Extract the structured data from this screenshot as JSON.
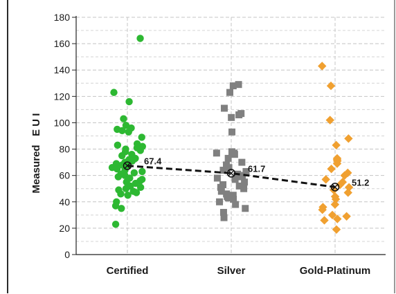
{
  "chart_data": {
    "type": "scatter",
    "title": "",
    "xlabel": "",
    "ylabel": "Measured   E U I",
    "ylim": [
      0,
      180
    ],
    "yticks": [
      0,
      20,
      40,
      60,
      80,
      100,
      120,
      140,
      160,
      180
    ],
    "grid": true,
    "categories": [
      "Certified",
      "Silver",
      "Gold-Platinum"
    ],
    "series": [
      {
        "category": "Certified",
        "marker": "circle",
        "color": "#2db832",
        "values": [
          164,
          123,
          116,
          103,
          98,
          96,
          95,
          94,
          93,
          89,
          84,
          83,
          82,
          81,
          80,
          79,
          78,
          76,
          75,
          73,
          72,
          71,
          70,
          69,
          68,
          67,
          66,
          65,
          64,
          63,
          62,
          61,
          60,
          59,
          58,
          57,
          56,
          55,
          54,
          52,
          51,
          50,
          49,
          48,
          47,
          46,
          45,
          40,
          37,
          35,
          23
        ]
      },
      {
        "category": "Silver",
        "marker": "square",
        "color": "#808080",
        "values": [
          129,
          128,
          123,
          111,
          107,
          106,
          104,
          93,
          78,
          77,
          77,
          76,
          73,
          70,
          68,
          66,
          64,
          63,
          61,
          60,
          59,
          58,
          57,
          55,
          53,
          52,
          51,
          50,
          48,
          46,
          45,
          44,
          43,
          42,
          40,
          38,
          35,
          32,
          28
        ]
      },
      {
        "category": "Gold-Platinum",
        "marker": "diamond",
        "color": "#f0a030",
        "values": [
          143,
          128,
          102,
          88,
          83,
          73,
          72,
          71,
          69,
          65,
          62,
          60,
          57,
          55,
          53,
          51,
          49,
          47,
          44,
          42,
          38,
          36,
          34,
          30,
          29,
          27,
          26,
          19
        ]
      }
    ],
    "means": {
      "values": [
        67.4,
        61.7,
        51.2
      ],
      "labels": [
        "67.4",
        "61.7",
        "51.2"
      ],
      "line_style": "dashed",
      "color": "#111111"
    }
  }
}
